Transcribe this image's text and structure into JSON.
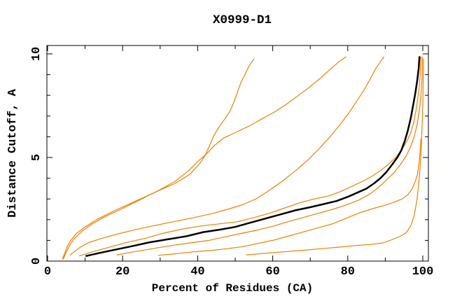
{
  "chart_data": {
    "type": "line",
    "title": "X0999-D1",
    "xlabel": "Percent of Residues (CA)",
    "ylabel": "Distance Cutoff, A",
    "xlim": [
      0,
      101.7
    ],
    "ylim": [
      0,
      10.4
    ],
    "grid": false,
    "legend": "none",
    "x_major_ticks": [
      0,
      20,
      40,
      60,
      80,
      100
    ],
    "x_tick_labels": [
      "0",
      "20",
      "40",
      "60",
      "80",
      "100"
    ],
    "x_minor_ticks": [
      10,
      30,
      50,
      70,
      90
    ],
    "y_major_ticks": [
      0,
      5,
      10
    ],
    "y_tick_labels": [
      "0",
      "5",
      "10"
    ],
    "y_minor_ticks": [
      1,
      2,
      3,
      4,
      6,
      7,
      8,
      9
    ],
    "colors": {
      "model_curve": "#ee8000",
      "reference_curve": "#000000",
      "frame": "#000000",
      "background": "#ffffff"
    },
    "series": [
      {
        "name": "model-curve-1",
        "color": "#ee8000",
        "width": 1.2,
        "points": [
          [
            4,
            0.1
          ],
          [
            4.5,
            0.35
          ],
          [
            5.2,
            0.7
          ],
          [
            6.2,
            1.0
          ],
          [
            7.8,
            1.35
          ],
          [
            10,
            1.65
          ],
          [
            13.5,
            2.05
          ],
          [
            18,
            2.45
          ],
          [
            23.5,
            2.9
          ],
          [
            29,
            3.35
          ],
          [
            34,
            3.75
          ],
          [
            38,
            4.2
          ],
          [
            40.5,
            4.7
          ],
          [
            42,
            5.1
          ],
          [
            43.2,
            5.6
          ],
          [
            44.3,
            6.05
          ],
          [
            45.6,
            6.45
          ],
          [
            47,
            6.8
          ],
          [
            48.5,
            7.2
          ],
          [
            49.5,
            7.6
          ],
          [
            50.5,
            8.1
          ],
          [
            51.5,
            8.6
          ],
          [
            52.7,
            9.05
          ],
          [
            53.8,
            9.45
          ],
          [
            55,
            9.75
          ]
        ]
      },
      {
        "name": "model-curve-2",
        "color": "#ee8000",
        "width": 1.2,
        "points": [
          [
            4.2,
            0.1
          ],
          [
            5,
            0.45
          ],
          [
            6,
            0.8
          ],
          [
            7.2,
            1.1
          ],
          [
            9,
            1.42
          ],
          [
            11.5,
            1.75
          ],
          [
            15,
            2.12
          ],
          [
            19.5,
            2.5
          ],
          [
            24.5,
            2.95
          ],
          [
            29.5,
            3.4
          ],
          [
            34,
            3.85
          ],
          [
            37.5,
            4.35
          ],
          [
            40,
            4.8
          ],
          [
            42.5,
            5.2
          ],
          [
            44.6,
            5.6
          ],
          [
            47,
            5.95
          ],
          [
            50,
            6.2
          ],
          [
            53.5,
            6.5
          ],
          [
            57,
            6.85
          ],
          [
            60.5,
            7.2
          ],
          [
            63.5,
            7.55
          ],
          [
            66.5,
            7.95
          ],
          [
            69.5,
            8.35
          ],
          [
            72.5,
            8.8
          ],
          [
            75,
            9.2
          ],
          [
            77.5,
            9.6
          ],
          [
            79.5,
            9.85
          ]
        ]
      },
      {
        "name": "model-curve-3",
        "color": "#ee8000",
        "width": 1.2,
        "points": [
          [
            6,
            0.3
          ],
          [
            8.5,
            0.65
          ],
          [
            11,
            0.9
          ],
          [
            14.5,
            1.1
          ],
          [
            18.5,
            1.3
          ],
          [
            23,
            1.5
          ],
          [
            28,
            1.7
          ],
          [
            33.5,
            1.9
          ],
          [
            39,
            2.1
          ],
          [
            44,
            2.3
          ],
          [
            48,
            2.5
          ],
          [
            52,
            2.72
          ],
          [
            55.5,
            3.0
          ],
          [
            59,
            3.4
          ],
          [
            62.5,
            3.85
          ],
          [
            66,
            4.35
          ],
          [
            69.5,
            4.9
          ],
          [
            72.5,
            5.45
          ],
          [
            75.5,
            6.05
          ],
          [
            78,
            6.6
          ],
          [
            80.5,
            7.2
          ],
          [
            82.5,
            7.75
          ],
          [
            84.5,
            8.3
          ],
          [
            86,
            8.8
          ],
          [
            87.5,
            9.3
          ],
          [
            88.8,
            9.65
          ],
          [
            89.6,
            9.85
          ]
        ]
      },
      {
        "name": "model-curve-4",
        "color": "#ee8000",
        "width": 1.2,
        "points": [
          [
            8.5,
            0.25
          ],
          [
            12,
            0.45
          ],
          [
            16,
            0.65
          ],
          [
            21,
            0.9
          ],
          [
            26,
            1.1
          ],
          [
            31,
            1.35
          ],
          [
            36,
            1.55
          ],
          [
            41,
            1.7
          ],
          [
            46,
            1.8
          ],
          [
            50.5,
            1.9
          ],
          [
            55,
            2.1
          ],
          [
            59,
            2.3
          ],
          [
            63,
            2.55
          ],
          [
            67,
            2.8
          ],
          [
            71,
            3.0
          ],
          [
            75,
            3.15
          ],
          [
            78,
            3.35
          ],
          [
            81,
            3.6
          ],
          [
            84,
            3.85
          ],
          [
            86.5,
            4.1
          ],
          [
            89,
            4.4
          ],
          [
            91,
            4.7
          ],
          [
            93,
            5.05
          ],
          [
            94.5,
            5.4
          ],
          [
            95.8,
            5.8
          ],
          [
            96.8,
            6.2
          ],
          [
            97.6,
            6.7
          ],
          [
            98.2,
            7.3
          ],
          [
            98.7,
            7.9
          ],
          [
            99.1,
            8.5
          ],
          [
            99.35,
            9.1
          ],
          [
            99.5,
            9.85
          ]
        ]
      },
      {
        "name": "model-curve-5",
        "color": "#ee8000",
        "width": 1.2,
        "points": [
          [
            18.5,
            0.3
          ],
          [
            23,
            0.45
          ],
          [
            28,
            0.6
          ],
          [
            33,
            0.75
          ],
          [
            38,
            0.88
          ],
          [
            43,
            1.0
          ],
          [
            47.5,
            1.18
          ],
          [
            52,
            1.35
          ],
          [
            56,
            1.5
          ],
          [
            60,
            1.68
          ],
          [
            64,
            1.9
          ],
          [
            68,
            2.1
          ],
          [
            72,
            2.3
          ],
          [
            76,
            2.5
          ],
          [
            79.5,
            2.7
          ],
          [
            83,
            2.95
          ],
          [
            86,
            3.25
          ],
          [
            88.5,
            3.6
          ],
          [
            90.5,
            3.95
          ],
          [
            92.5,
            4.3
          ],
          [
            94,
            4.65
          ],
          [
            95.5,
            5.05
          ],
          [
            96.7,
            5.5
          ],
          [
            97.7,
            6.0
          ],
          [
            98.5,
            6.6
          ],
          [
            99.1,
            7.3
          ],
          [
            99.5,
            8.0
          ],
          [
            99.8,
            8.85
          ],
          [
            99.9,
            9.85
          ]
        ]
      },
      {
        "name": "model-curve-6",
        "color": "#ee8000",
        "width": 1.2,
        "points": [
          [
            29.5,
            0.28
          ],
          [
            34,
            0.35
          ],
          [
            39,
            0.45
          ],
          [
            44,
            0.52
          ],
          [
            48,
            0.6
          ],
          [
            52,
            0.7
          ],
          [
            56,
            0.85
          ],
          [
            60,
            1.0
          ],
          [
            64,
            1.2
          ],
          [
            68,
            1.4
          ],
          [
            72,
            1.6
          ],
          [
            76,
            1.8
          ],
          [
            80,
            2.1
          ],
          [
            83.5,
            2.35
          ],
          [
            87,
            2.55
          ],
          [
            90,
            2.7
          ],
          [
            92.5,
            2.85
          ],
          [
            94.5,
            3.0
          ],
          [
            96,
            3.2
          ],
          [
            97.2,
            3.5
          ],
          [
            98,
            3.85
          ],
          [
            98.6,
            4.2
          ],
          [
            99,
            4.7
          ],
          [
            99.3,
            5.3
          ],
          [
            99.5,
            5.9
          ]
        ]
      },
      {
        "name": "model-curve-7",
        "color": "#ee8000",
        "width": 1.2,
        "points": [
          [
            53,
            0.3
          ],
          [
            58,
            0.38
          ],
          [
            63,
            0.45
          ],
          [
            68,
            0.52
          ],
          [
            73,
            0.6
          ],
          [
            78,
            0.68
          ],
          [
            82,
            0.75
          ],
          [
            86,
            0.8
          ],
          [
            89.5,
            0.88
          ],
          [
            92,
            1.05
          ],
          [
            94,
            1.2
          ],
          [
            95.5,
            1.35
          ],
          [
            96.8,
            1.7
          ],
          [
            97.7,
            2.2
          ],
          [
            98.4,
            2.9
          ],
          [
            98.9,
            3.7
          ],
          [
            99.3,
            4.5
          ],
          [
            99.6,
            5.5
          ],
          [
            99.8,
            6.5
          ],
          [
            100,
            7.5
          ],
          [
            100.1,
            8.6
          ],
          [
            100.2,
            9.75
          ]
        ]
      },
      {
        "name": "reference-curve",
        "color": "#000000",
        "width": 2.5,
        "points": [
          [
            10.3,
            0.25
          ],
          [
            14,
            0.4
          ],
          [
            18,
            0.55
          ],
          [
            22.5,
            0.72
          ],
          [
            27,
            0.9
          ],
          [
            32,
            1.05
          ],
          [
            37,
            1.2
          ],
          [
            41.5,
            1.4
          ],
          [
            46,
            1.52
          ],
          [
            50,
            1.65
          ],
          [
            54,
            1.85
          ],
          [
            58,
            2.05
          ],
          [
            62,
            2.25
          ],
          [
            66,
            2.45
          ],
          [
            70,
            2.6
          ],
          [
            73.5,
            2.75
          ],
          [
            77,
            2.9
          ],
          [
            80,
            3.1
          ],
          [
            82.5,
            3.3
          ],
          [
            85,
            3.5
          ],
          [
            87,
            3.75
          ],
          [
            88.7,
            4.0
          ],
          [
            90.3,
            4.3
          ],
          [
            91.8,
            4.65
          ],
          [
            93.2,
            5.0
          ],
          [
            94.3,
            5.35
          ],
          [
            95.2,
            5.8
          ],
          [
            96,
            6.3
          ],
          [
            96.8,
            6.9
          ],
          [
            97.4,
            7.5
          ],
          [
            98,
            8.1
          ],
          [
            98.5,
            8.7
          ],
          [
            98.9,
            9.3
          ],
          [
            99.1,
            9.85
          ]
        ]
      }
    ]
  }
}
